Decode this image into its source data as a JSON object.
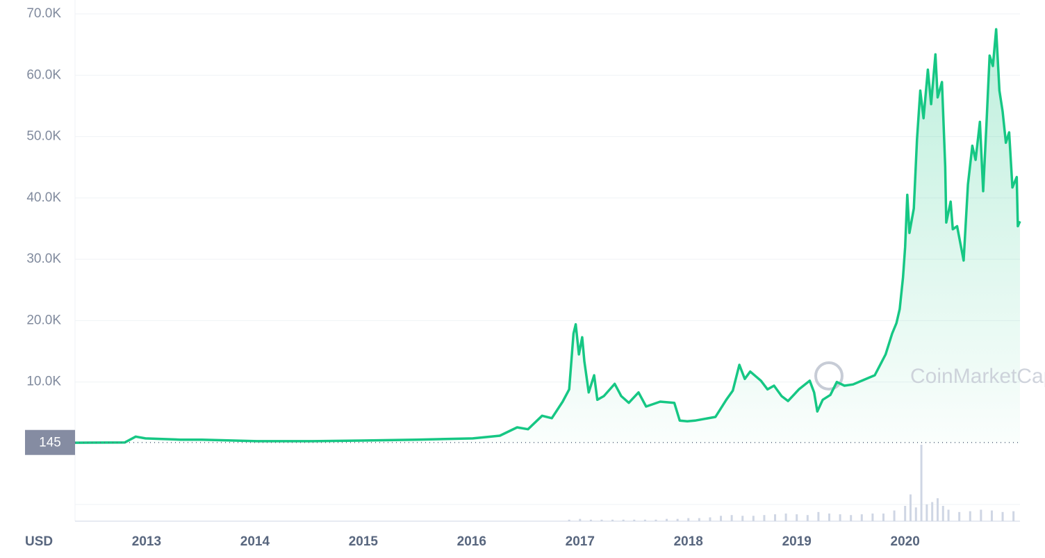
{
  "chart_data": {
    "type": "line",
    "x_label": "USD",
    "watermark": "CoinMarketCap",
    "current_price": 145,
    "xlim": [
      2012.34,
      2021.06
    ],
    "ylim": [
      0,
      70000
    ],
    "xticks": [
      2013,
      2014,
      2015,
      2016,
      2017,
      2018,
      2019,
      2020
    ],
    "yticks": [
      {
        "value": 10000,
        "label": "10.0K"
      },
      {
        "value": 20000,
        "label": "20.0K"
      },
      {
        "value": 30000,
        "label": "30.0K"
      },
      {
        "value": 40000,
        "label": "40.0K"
      },
      {
        "value": 50000,
        "label": "50.0K"
      },
      {
        "value": 60000,
        "label": "60.0K"
      },
      {
        "value": 70000,
        "label": "70.0K"
      }
    ],
    "grid": true,
    "series": [
      {
        "color": "#16c784",
        "x": [
          2012.34,
          2012.8,
          2012.9,
          2012.99,
          2013.31,
          2013.51,
          2014.02,
          2014.53,
          2014.98,
          2015.49,
          2016.01,
          2016.26,
          2016.42,
          2016.52,
          2016.65,
          2016.74,
          2016.84,
          2016.9,
          2016.94,
          2016.96,
          2016.99,
          2017.02,
          2017.04,
          2017.08,
          2017.13,
          2017.16,
          2017.22,
          2017.32,
          2017.38,
          2017.45,
          2017.54,
          2017.61,
          2017.74,
          2017.87,
          2017.92,
          2017.99,
          2018.06,
          2018.25,
          2018.35,
          2018.41,
          2018.47,
          2018.52,
          2018.57,
          2018.67,
          2018.73,
          2018.79,
          2018.86,
          2018.92,
          2019.02,
          2019.12,
          2019.16,
          2019.19,
          2019.24,
          2019.31,
          2019.37,
          2019.44,
          2019.52,
          2019.6,
          2019.72,
          2019.82,
          2019.88,
          2019.92,
          2019.95,
          2019.98,
          2020.0,
          2020.02,
          2020.04,
          2020.08,
          2020.11,
          2020.14,
          2020.17,
          2020.21,
          2020.24,
          2020.28,
          2020.3,
          2020.34,
          2020.37,
          2020.38,
          2020.42,
          2020.44,
          2020.48,
          2020.51,
          2020.54,
          2020.58,
          2020.62,
          2020.65,
          2020.69,
          2020.72,
          2020.75,
          2020.78,
          2020.81,
          2020.84,
          2020.87,
          2020.9,
          2020.93,
          2020.96,
          2020.99,
          2021.03,
          2021.04,
          2021.06
        ],
        "values": [
          100,
          150,
          1100,
          800,
          600,
          600,
          350,
          350,
          450,
          600,
          800,
          1250,
          2600,
          2300,
          4500,
          4100,
          6800,
          8800,
          17900,
          19400,
          14500,
          17300,
          13400,
          8300,
          11100,
          7100,
          7700,
          9700,
          7700,
          6600,
          8300,
          6000,
          6800,
          6600,
          3700,
          3600,
          3700,
          4300,
          7100,
          8600,
          12800,
          10500,
          11700,
          10200,
          8800,
          9400,
          7700,
          6900,
          8800,
          10200,
          8300,
          5200,
          7100,
          7900,
          10000,
          9400,
          9600,
          10200,
          11100,
          14500,
          17900,
          19600,
          21900,
          27000,
          32000,
          40500,
          34300,
          38300,
          49600,
          57500,
          53000,
          60900,
          55300,
          63400,
          56400,
          58900,
          45100,
          36000,
          39400,
          34900,
          35400,
          32600,
          29800,
          42200,
          48500,
          46200,
          52400,
          41100,
          51900,
          63200,
          61500,
          67500,
          57500,
          54100,
          49000,
          50700,
          41700,
          43400,
          35400,
          36200
        ]
      }
    ],
    "volume": {
      "color": "#cfd6e4",
      "ylim": [
        0,
        100
      ],
      "x": [
        2016.9,
        2017.0,
        2017.1,
        2017.2,
        2017.3,
        2017.4,
        2017.5,
        2017.6,
        2017.7,
        2017.8,
        2017.9,
        2018.0,
        2018.1,
        2018.2,
        2018.3,
        2018.4,
        2018.5,
        2018.6,
        2018.7,
        2018.8,
        2018.9,
        2019.0,
        2019.1,
        2019.2,
        2019.3,
        2019.4,
        2019.5,
        2019.6,
        2019.7,
        2019.8,
        2019.9,
        2020.0,
        2020.05,
        2020.1,
        2020.15,
        2020.2,
        2020.25,
        2020.3,
        2020.35,
        2020.4,
        2020.5,
        2020.6,
        2020.7,
        2020.8,
        2020.9,
        2021.0
      ],
      "values": [
        2,
        3,
        2,
        2,
        2,
        2,
        2,
        2,
        2,
        3,
        3,
        4,
        4,
        5,
        7,
        8,
        7,
        7,
        8,
        9,
        10,
        9,
        8,
        12,
        10,
        9,
        8,
        9,
        10,
        10,
        14,
        20,
        35,
        18,
        100,
        22,
        25,
        30,
        20,
        15,
        12,
        13,
        15,
        14,
        12,
        13
      ]
    }
  }
}
